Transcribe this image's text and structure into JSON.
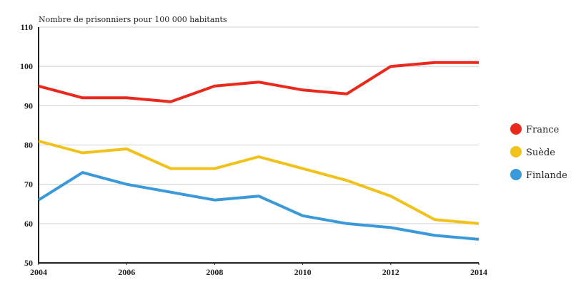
{
  "chart_data": {
    "type": "line",
    "title": "",
    "ylabel": "Nombre de prisonniers pour 100 000 habitants",
    "xlabel": "",
    "x": [
      2004,
      2005,
      2006,
      2007,
      2008,
      2009,
      2010,
      2011,
      2012,
      2013,
      2014
    ],
    "xlim": [
      2004,
      2014
    ],
    "ylim": [
      50,
      110
    ],
    "x_ticks": [
      2004,
      2006,
      2008,
      2010,
      2012,
      2014
    ],
    "y_ticks": [
      50,
      60,
      70,
      80,
      90,
      100,
      110
    ],
    "grid": "horizontal",
    "legend_position": "right",
    "series": [
      {
        "name": "France",
        "color": "#e8291c",
        "values": [
          95,
          92,
          92,
          91,
          95,
          96,
          94,
          93,
          100,
          101,
          101
        ]
      },
      {
        "name": "Suède",
        "color": "#f1c21b",
        "values": [
          81,
          78,
          79,
          74,
          74,
          77,
          74,
          71,
          67,
          61,
          60
        ]
      },
      {
        "name": "Finlande",
        "color": "#3a9ad9",
        "values": [
          66,
          73,
          70,
          68,
          66,
          67,
          62,
          60,
          59,
          57,
          56
        ]
      }
    ]
  }
}
